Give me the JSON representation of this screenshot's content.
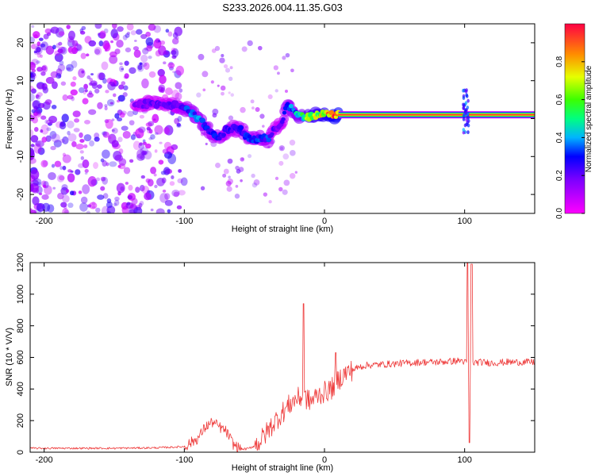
{
  "title": "S233.2026.004.11.35.G03",
  "colors": {
    "snr_line": "#ee3a3a",
    "background": "#ffffff"
  },
  "chart_data": [
    {
      "type": "heatmap",
      "name": "spectrogram",
      "xlabel": "Height of straight line (km)",
      "ylabel": "Frequency (Hz)",
      "xlim": [
        -210,
        150
      ],
      "ylim": [
        -25,
        25
      ],
      "xticks": [
        -200,
        -100,
        0,
        100
      ],
      "yticks": [
        -20,
        -10,
        0,
        10,
        20
      ],
      "colorbar": {
        "label": "Normalized spectral amplitude",
        "range": [
          0,
          1
        ],
        "ticks": [
          "0.0",
          "0.2",
          "0.4",
          "0.6",
          "0.8"
        ],
        "tick_values": [
          0.0,
          0.2,
          0.4,
          0.6,
          0.8
        ]
      },
      "ridge": {
        "x": [
          -135,
          -125,
          -115,
          -105,
          -100,
          -95,
          -90,
          -85,
          -80,
          -75,
          -70,
          -65,
          -60,
          -55,
          -50,
          -45,
          -40,
          -35,
          -30,
          -27,
          -25,
          -22,
          -18,
          -15,
          -10,
          -5,
          0,
          5,
          10,
          30,
          50,
          70,
          90,
          100,
          105,
          120,
          150
        ],
        "y": [
          3.5,
          4.0,
          3.5,
          3.5,
          3.0,
          1.5,
          0.0,
          -2.0,
          -4.0,
          -5.0,
          -3.0,
          -2.5,
          -3.0,
          -5.0,
          -5.5,
          -5.0,
          -5.5,
          -2.5,
          -1.0,
          4.0,
          3.5,
          2.0,
          1.0,
          0.5,
          0.5,
          1.0,
          1.5,
          1.0,
          1.0,
          1.0,
          1.0,
          1.0,
          1.0,
          1.0,
          1.0,
          1.0,
          1.0
        ],
        "amplitude": [
          0.15,
          0.2,
          0.2,
          0.2,
          0.3,
          0.35,
          0.35,
          0.35,
          0.3,
          0.3,
          0.25,
          0.25,
          0.25,
          0.3,
          0.3,
          0.3,
          0.3,
          0.2,
          0.2,
          0.35,
          0.35,
          0.4,
          0.45,
          0.55,
          0.65,
          0.7,
          0.75,
          0.8,
          0.85,
          0.88,
          0.9,
          0.9,
          0.9,
          0.85,
          0.85,
          0.9,
          0.9
        ]
      }
    },
    {
      "type": "line",
      "name": "snr",
      "xlabel": "Height of straight line (km)",
      "ylabel": "SNR (10 * V/V)",
      "xlim": [
        -210,
        150
      ],
      "ylim": [
        0,
        1200
      ],
      "xticks": [
        -200,
        -100,
        0,
        100
      ],
      "yticks": [
        0,
        200,
        400,
        600,
        800,
        1000,
        1200
      ],
      "baseline": {
        "x": [
          -210,
          -180,
          -150,
          -120,
          -100,
          -90,
          -85,
          -80,
          -75,
          -70,
          -65,
          -60,
          -55,
          -50,
          -45,
          -40,
          -35,
          -30,
          -25,
          -20,
          -15,
          -10,
          -5,
          0,
          5,
          10,
          15,
          20,
          25,
          30,
          40,
          50,
          60,
          70,
          80,
          90,
          98,
          102,
          106,
          110,
          120,
          130,
          140,
          150
        ],
        "y": [
          25,
          25,
          25,
          28,
          35,
          90,
          160,
          190,
          160,
          130,
          50,
          20,
          20,
          40,
          80,
          140,
          200,
          250,
          300,
          340,
          350,
          320,
          360,
          380,
          400,
          460,
          500,
          520,
          540,
          550,
          555,
          560,
          565,
          570,
          570,
          575,
          580,
          560,
          565,
          570,
          565,
          570,
          570,
          570
        ]
      },
      "spikes": [
        {
          "x": -15,
          "y": 940
        },
        {
          "x": 8,
          "y": 630
        },
        {
          "x": 102,
          "y": 1200
        },
        {
          "x": 103.5,
          "y": 60
        },
        {
          "x": 105,
          "y": 1190
        }
      ]
    }
  ]
}
